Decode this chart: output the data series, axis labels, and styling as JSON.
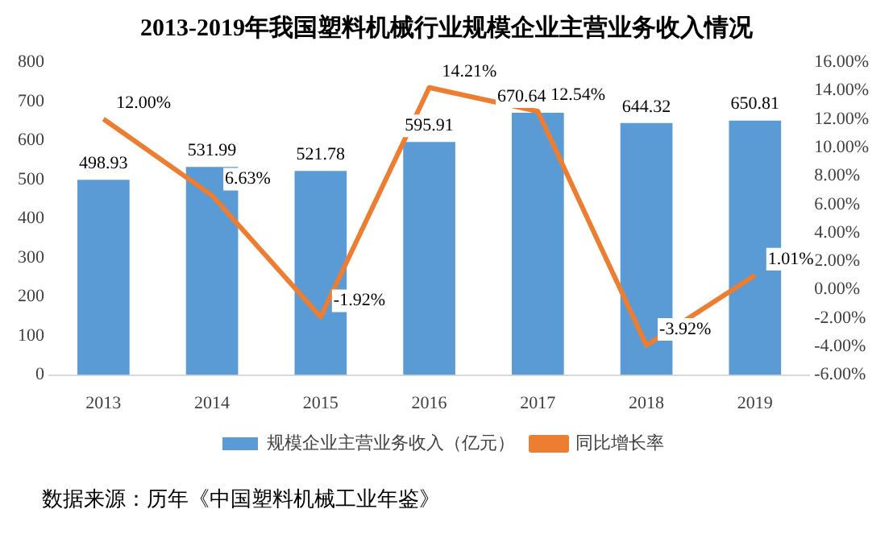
{
  "chart_data": {
    "type": "bar",
    "title": "2013-2019年我国塑料机械行业规模企业主营业务收入情况",
    "categories": [
      "2013",
      "2014",
      "2015",
      "2016",
      "2017",
      "2018",
      "2019"
    ],
    "series": [
      {
        "name": "规模企业主营业务收入（亿元）",
        "color": "#5b9bd5",
        "values": [
          498.93,
          531.99,
          521.78,
          595.91,
          670.64,
          644.32,
          650.81
        ],
        "value_labels": [
          "498.93",
          "531.99",
          "521.78",
          "595.91",
          "670.64",
          "644.32",
          "650.81"
        ]
      },
      {
        "name": "同比增长率",
        "type": "line",
        "axis": "y2",
        "color": "#ed7d31",
        "values": [
          12.0,
          6.63,
          -1.92,
          14.21,
          12.54,
          -3.92,
          1.01
        ],
        "value_labels": [
          "12.00%",
          "6.63%",
          "-1.92%",
          "14.21%",
          "12.54%",
          "-3.92%",
          "1.01%"
        ]
      }
    ],
    "ylim": [
      0,
      800
    ],
    "yticks": [
      0,
      100,
      200,
      300,
      400,
      500,
      600,
      700,
      800
    ],
    "y2lim": [
      -6,
      16
    ],
    "y2ticks": [
      {
        "value": -6,
        "label": "-6.00%"
      },
      {
        "value": -4,
        "label": "-4.00%"
      },
      {
        "value": -2,
        "label": "-2.00%"
      },
      {
        "value": 0,
        "label": "0.00%"
      },
      {
        "value": 2,
        "label": "2.00%"
      },
      {
        "value": 4,
        "label": "4.00%"
      },
      {
        "value": 6,
        "label": "6.00%"
      },
      {
        "value": 8,
        "label": "8.00%"
      },
      {
        "value": 10,
        "label": "10.00%"
      },
      {
        "value": 12,
        "label": "12.00%"
      },
      {
        "value": 14,
        "label": "14.00%"
      },
      {
        "value": 16,
        "label": "16.00%"
      }
    ],
    "legend": "bottom",
    "marker": "none",
    "line_style": "solid",
    "annotations": [
      "数据来源：历年《中国塑料机械工业年鉴》"
    ]
  }
}
